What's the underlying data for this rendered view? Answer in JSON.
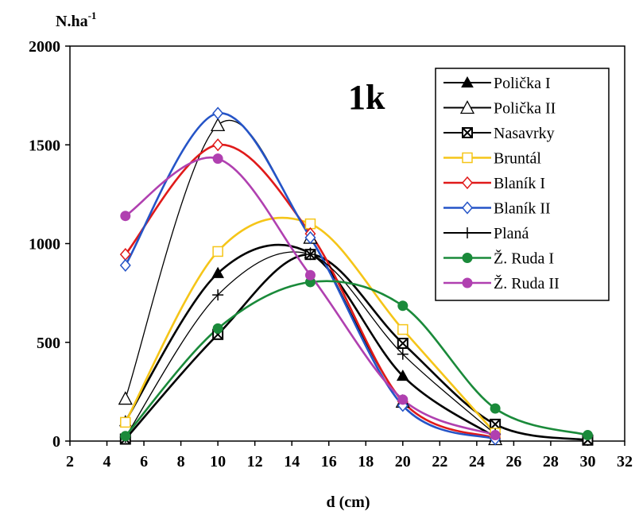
{
  "chart_data": {
    "type": "line",
    "annotation": "1k",
    "xlabel": "d (cm)",
    "ylabel": "N.ha",
    "ylabel_sup": "-1",
    "xlim": [
      2,
      32
    ],
    "ylim": [
      0,
      2000
    ],
    "xticks": [
      2,
      4,
      6,
      8,
      10,
      12,
      14,
      16,
      18,
      20,
      22,
      24,
      26,
      28,
      30,
      32
    ],
    "yticks": [
      0,
      500,
      1000,
      1500,
      2000
    ],
    "grid": false,
    "legend_position": "top-right",
    "series": [
      {
        "name": "Polička I",
        "color": "#000000",
        "marker": "filled-triangle",
        "x": [
          5,
          10,
          15,
          20,
          25
        ],
        "y": [
          100,
          850,
          950,
          330,
          20
        ]
      },
      {
        "name": "Polička II",
        "color": "#000000",
        "marker": "open-triangle",
        "x": [
          5,
          10,
          15,
          20,
          25
        ],
        "y": [
          215,
          1600,
          1030,
          200,
          10
        ]
      },
      {
        "name": "Nasavrky",
        "color": "#000000",
        "marker": "x-square",
        "x": [
          5,
          10,
          15,
          20,
          25,
          30
        ],
        "y": [
          10,
          540,
          945,
          495,
          85,
          5
        ]
      },
      {
        "name": "Bruntál",
        "color": "#f5c518",
        "marker": "open-square",
        "x": [
          5,
          10,
          15,
          20,
          25
        ],
        "y": [
          95,
          960,
          1100,
          565,
          40
        ]
      },
      {
        "name": "Blaník I",
        "color": "#e01a1a",
        "marker": "open-diamond",
        "x": [
          5,
          10,
          15,
          20,
          25
        ],
        "y": [
          945,
          1500,
          1050,
          200,
          15
        ]
      },
      {
        "name": "Blaník II",
        "color": "#2554c7",
        "marker": "open-diamond",
        "x": [
          5,
          10,
          15,
          20,
          25
        ],
        "y": [
          890,
          1660,
          1030,
          180,
          10
        ]
      },
      {
        "name": "Planá",
        "color": "#000000",
        "marker": "plus",
        "x": [
          5,
          10,
          15,
          20,
          25
        ],
        "y": [
          20,
          740,
          945,
          440,
          35
        ]
      },
      {
        "name": "Ž. Ruda I",
        "color": "#1a8a3a",
        "marker": "filled-circle",
        "x": [
          5,
          10,
          15,
          20,
          25,
          30
        ],
        "y": [
          25,
          570,
          805,
          685,
          165,
          30
        ]
      },
      {
        "name": "Ž. Ruda II",
        "color": "#b040b0",
        "marker": "filled-circle",
        "x": [
          5,
          10,
          15,
          20,
          25
        ],
        "y": [
          1140,
          1430,
          840,
          210,
          30
        ]
      }
    ]
  }
}
